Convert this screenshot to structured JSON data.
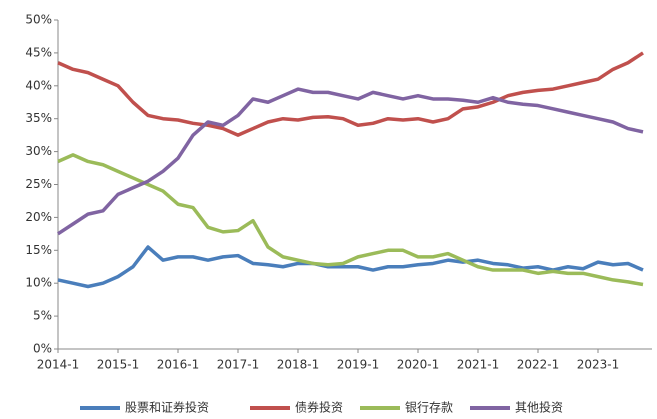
{
  "chart_data": {
    "type": "line",
    "categories": [
      "2014-1",
      null,
      null,
      null,
      "2015-1",
      null,
      null,
      null,
      "2016-1",
      null,
      null,
      null,
      "2017-1",
      null,
      null,
      null,
      "2018-1",
      null,
      null,
      null,
      "2019-1",
      null,
      null,
      null,
      "2020-1",
      null,
      null,
      null,
      "2021-1",
      null,
      null,
      null,
      "2022-1",
      null,
      null,
      null,
      "2023-1",
      null,
      null,
      null
    ],
    "series": [
      {
        "name": "股票和证券投资",
        "color": "#4a7ebb",
        "values": [
          10.5,
          10,
          9.5,
          10,
          11,
          12.5,
          15.5,
          13.5,
          14,
          14,
          13.5,
          14,
          14.2,
          13,
          12.8,
          12.5,
          13,
          13,
          12.5,
          12.5,
          12.5,
          12,
          12.5,
          12.5,
          12.8,
          13,
          13.5,
          13.2,
          13.5,
          13,
          12.8,
          12.3,
          12.5,
          12,
          12.5,
          12.2,
          13.2,
          12.8,
          13,
          12
        ]
      },
      {
        "name": "债券投资",
        "color": "#c0504d",
        "values": [
          43.5,
          42.5,
          42,
          41,
          40,
          37.5,
          35.5,
          35,
          34.8,
          34.3,
          34,
          33.5,
          32.5,
          33.5,
          34.5,
          35,
          34.8,
          35.2,
          35.3,
          35,
          34,
          34.3,
          35,
          34.8,
          35,
          34.5,
          35,
          36.5,
          36.8,
          37.5,
          38.5,
          39,
          39.3,
          39.5,
          40,
          40.5,
          41,
          42.5,
          43.5,
          45
        ]
      },
      {
        "name": "银行存款",
        "color": "#9bbb59",
        "values": [
          28.5,
          29.5,
          28.5,
          28,
          27,
          26,
          25,
          24,
          22,
          21.5,
          18.5,
          17.8,
          18,
          19.5,
          15.5,
          14,
          13.5,
          13,
          12.8,
          13,
          14,
          14.5,
          15,
          15,
          14,
          14,
          14.5,
          13.5,
          12.5,
          12,
          12,
          12,
          11.5,
          11.8,
          11.5,
          11.5,
          11,
          10.5,
          10.2,
          9.8
        ]
      },
      {
        "name": "其他投资",
        "color": "#8064a2",
        "values": [
          17.5,
          19,
          20.5,
          21,
          23.5,
          24.5,
          25.5,
          27,
          29,
          32.5,
          34.5,
          34,
          35.5,
          38,
          37.5,
          38.5,
          39.5,
          39,
          39,
          38.5,
          38,
          39,
          38.5,
          38,
          38.5,
          38,
          38,
          37.8,
          37.5,
          38.2,
          37.5,
          37.2,
          37,
          36.5,
          36,
          35.5,
          35,
          34.5,
          33.5,
          33
        ]
      }
    ],
    "ylim": [
      0,
      50
    ],
    "yticks": [
      {
        "value": 0,
        "label": "0%"
      },
      {
        "value": 5,
        "label": "5%"
      },
      {
        "value": 10,
        "label": "10%"
      },
      {
        "value": 15,
        "label": "15%"
      },
      {
        "value": 20,
        "label": "20%"
      },
      {
        "value": 25,
        "label": "25%"
      },
      {
        "value": 30,
        "label": "30%"
      },
      {
        "value": 35,
        "label": "35%"
      },
      {
        "value": 40,
        "label": "40%"
      },
      {
        "value": 45,
        "label": "45%"
      },
      {
        "value": 50,
        "label": "50%"
      }
    ],
    "grid": false,
    "legend": "bottom"
  }
}
